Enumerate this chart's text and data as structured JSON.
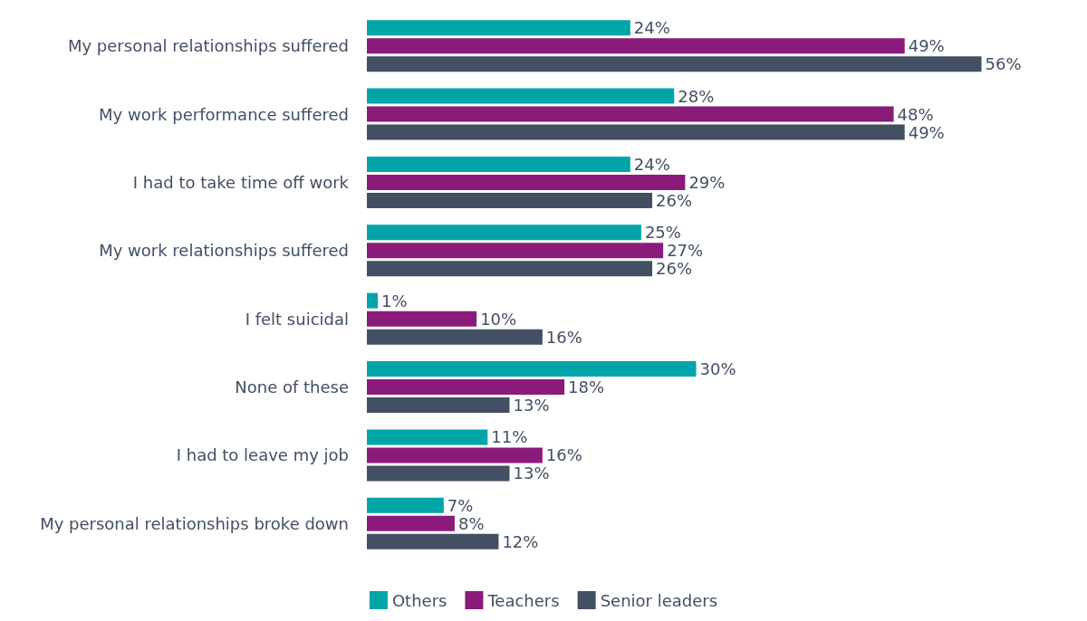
{
  "chart_data": {
    "type": "bar",
    "orientation": "horizontal",
    "categories": [
      "My personal relationships suffered",
      "My work performance suffered",
      "I had to take time off work",
      "My work relationships suffered",
      "I felt suicidal",
      "None of these",
      "I had to leave my job",
      "My personal relationships broke down"
    ],
    "series": [
      {
        "name": "Others",
        "color": "#00a5a8",
        "values": [
          24,
          28,
          24,
          25,
          1,
          30,
          11,
          7
        ],
        "value_labels": [
          "24%",
          "28%",
          "24%",
          "25%",
          "1%",
          "30%",
          "11%",
          "7%"
        ]
      },
      {
        "name": "Teachers",
        "color": "#8a1b7b",
        "values": [
          49,
          48,
          29,
          27,
          10,
          18,
          16,
          8
        ],
        "value_labels": [
          "49%",
          "48%",
          "29%",
          "27%",
          "10%",
          "18%",
          "16%",
          "8%"
        ]
      },
      {
        "name": "Senior leaders",
        "color": "#434f63",
        "values": [
          56,
          49,
          26,
          26,
          16,
          13,
          13,
          12
        ],
        "value_labels": [
          "56%",
          "49%",
          "26%",
          "26%",
          "16%",
          "13%",
          "13%",
          "12%"
        ]
      }
    ],
    "legend": "bottom",
    "tick_labels": "y"
  }
}
